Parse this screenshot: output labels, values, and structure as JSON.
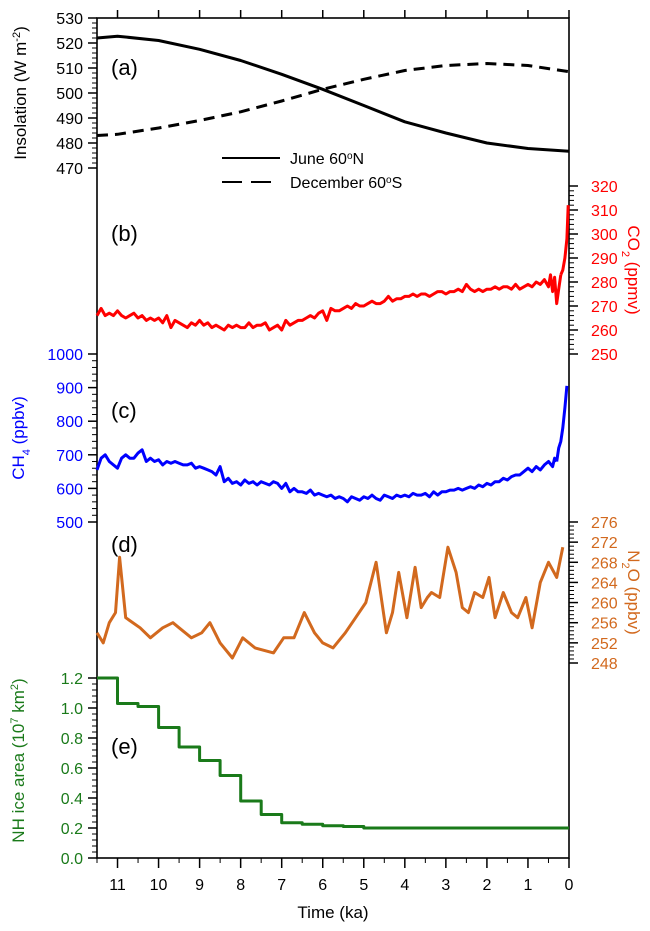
{
  "chart_data": [
    {
      "panel": "(a)",
      "type": "line",
      "ylabel_main": "Insolation (W m",
      "ylabel_sup": "-2",
      "ylabel_tail": ")",
      "ylim": [
        470,
        530
      ],
      "yticks": [
        470,
        480,
        490,
        500,
        510,
        520,
        530
      ],
      "color": "#000000",
      "legend": {
        "placement": "lower-center",
        "entries": [
          {
            "label_main": "June 60",
            "label_sup": "o",
            "label_tail": "N",
            "style": "solid"
          },
          {
            "label_main": "December 60",
            "label_sup": "o",
            "label_tail": "S",
            "style": "dashed"
          }
        ]
      },
      "series": [
        {
          "name": "June 60°N",
          "style": "solid",
          "x": [
            11.5,
            11,
            10,
            9,
            8,
            7,
            6,
            5,
            4,
            3,
            2,
            1,
            0
          ],
          "y": [
            522,
            522.7,
            521,
            517.5,
            513,
            507.5,
            501.5,
            495,
            488.5,
            484,
            480,
            477.8,
            476.7
          ]
        },
        {
          "name": "December 60°S",
          "style": "dashed",
          "x": [
            11.5,
            11,
            10,
            9,
            8,
            7,
            6,
            5,
            4,
            3,
            2,
            1,
            0
          ],
          "y": [
            483,
            483.5,
            486,
            489,
            492.5,
            496.8,
            501.5,
            505.5,
            509,
            511,
            511.8,
            511,
            508.5
          ]
        }
      ]
    },
    {
      "panel": "(b)",
      "type": "line",
      "ylabel_main": "CO",
      "ylabel_sub": "2",
      "ylabel_tail": " (ppmv)",
      "ylim": [
        250,
        320
      ],
      "yticks": [
        250,
        260,
        270,
        280,
        290,
        300,
        310,
        320
      ],
      "color": "#ff0000",
      "series": [
        {
          "name": "CO2",
          "x": [
            11.5,
            11.4,
            11.3,
            11.2,
            11.1,
            11.0,
            10.9,
            10.8,
            10.7,
            10.6,
            10.5,
            10.4,
            10.3,
            10.2,
            10.1,
            10.0,
            9.9,
            9.8,
            9.7,
            9.6,
            9.5,
            9.4,
            9.3,
            9.2,
            9.1,
            9.0,
            8.9,
            8.8,
            8.7,
            8.6,
            8.5,
            8.4,
            8.3,
            8.2,
            8.1,
            8.0,
            7.9,
            7.8,
            7.7,
            7.6,
            7.5,
            7.4,
            7.3,
            7.2,
            7.1,
            7.0,
            6.9,
            6.8,
            6.7,
            6.6,
            6.5,
            6.4,
            6.3,
            6.2,
            6.1,
            6.0,
            5.9,
            5.8,
            5.7,
            5.6,
            5.5,
            5.4,
            5.3,
            5.2,
            5.1,
            5.0,
            4.9,
            4.8,
            4.7,
            4.6,
            4.5,
            4.4,
            4.3,
            4.2,
            4.1,
            4.0,
            3.9,
            3.8,
            3.7,
            3.6,
            3.5,
            3.4,
            3.3,
            3.2,
            3.1,
            3.0,
            2.9,
            2.8,
            2.7,
            2.6,
            2.5,
            2.4,
            2.3,
            2.2,
            2.1,
            2.0,
            1.9,
            1.8,
            1.7,
            1.6,
            1.5,
            1.4,
            1.3,
            1.2,
            1.1,
            1.0,
            0.9,
            0.8,
            0.7,
            0.6,
            0.5,
            0.45,
            0.4,
            0.35,
            0.3,
            0.25,
            0.2
          ],
          "y": [
            266,
            269,
            266,
            267,
            266,
            268,
            266,
            265,
            266,
            267,
            265,
            266,
            264,
            265,
            264,
            265,
            263,
            266,
            261,
            264,
            263,
            262,
            261,
            263,
            262,
            264,
            262,
            263,
            261,
            262,
            261,
            260,
            262,
            261,
            262,
            261,
            261,
            263,
            261,
            262,
            262,
            263,
            260,
            261,
            262,
            260,
            264,
            262,
            263,
            264,
            264,
            265,
            266,
            265,
            267,
            268,
            264,
            269,
            268,
            268,
            269,
            270,
            269,
            271,
            270,
            270,
            271,
            272,
            271,
            271,
            272,
            274,
            272,
            273,
            273,
            274,
            274,
            275,
            274,
            275,
            275,
            274,
            275,
            276,
            276,
            275,
            276,
            276,
            277,
            276,
            279,
            277,
            276,
            277,
            276,
            277,
            277,
            278,
            277,
            278,
            278,
            277,
            279,
            277,
            278,
            279,
            278,
            280,
            279,
            281,
            278,
            283,
            276,
            282,
            271,
            277,
            283
          ]
        },
        {
          "name": "CO2-rise",
          "x": [
            0.2,
            0.15,
            0.1,
            0.05,
            0.02
          ],
          "y": [
            283,
            285,
            290,
            298,
            312
          ]
        }
      ]
    },
    {
      "panel": "(c)",
      "type": "line",
      "ylabel_main": "CH",
      "ylabel_sub": "4",
      "ylabel_tail": " (ppbv)",
      "ylim": [
        500,
        1000
      ],
      "yticks": [
        500,
        600,
        700,
        800,
        900,
        1000
      ],
      "color": "#0000ff",
      "series": [
        {
          "name": "CH4",
          "x": [
            11.5,
            11.4,
            11.3,
            11.2,
            11.1,
            11.0,
            10.9,
            10.8,
            10.7,
            10.6,
            10.5,
            10.4,
            10.3,
            10.2,
            10.1,
            10.0,
            9.9,
            9.8,
            9.7,
            9.6,
            9.5,
            9.4,
            9.3,
            9.2,
            9.1,
            9.0,
            8.9,
            8.8,
            8.7,
            8.6,
            8.5,
            8.4,
            8.3,
            8.2,
            8.1,
            8.0,
            7.9,
            7.8,
            7.7,
            7.6,
            7.5,
            7.4,
            7.3,
            7.2,
            7.1,
            7.0,
            6.9,
            6.8,
            6.7,
            6.6,
            6.5,
            6.4,
            6.3,
            6.2,
            6.1,
            6.0,
            5.9,
            5.8,
            5.7,
            5.6,
            5.5,
            5.4,
            5.3,
            5.2,
            5.1,
            5.0,
            4.9,
            4.8,
            4.7,
            4.6,
            4.5,
            4.4,
            4.3,
            4.2,
            4.1,
            4.0,
            3.9,
            3.8,
            3.7,
            3.6,
            3.5,
            3.4,
            3.3,
            3.2,
            3.1,
            3.0,
            2.9,
            2.8,
            2.7,
            2.6,
            2.5,
            2.4,
            2.3,
            2.2,
            2.1,
            2.0,
            1.9,
            1.8,
            1.7,
            1.6,
            1.5,
            1.4,
            1.3,
            1.2,
            1.1,
            1.0,
            0.9,
            0.8,
            0.7,
            0.6,
            0.5,
            0.4,
            0.35,
            0.3
          ],
          "y": [
            655,
            690,
            700,
            680,
            670,
            660,
            690,
            700,
            690,
            690,
            705,
            715,
            680,
            690,
            680,
            685,
            670,
            680,
            675,
            680,
            675,
            670,
            670,
            675,
            660,
            665,
            660,
            655,
            650,
            640,
            665,
            620,
            630,
            615,
            620,
            610,
            625,
            615,
            620,
            610,
            620,
            615,
            610,
            620,
            615,
            600,
            615,
            590,
            600,
            590,
            590,
            585,
            595,
            580,
            585,
            580,
            575,
            580,
            570,
            575,
            570,
            560,
            575,
            570,
            565,
            575,
            570,
            580,
            570,
            565,
            580,
            575,
            570,
            580,
            575,
            580,
            575,
            585,
            580,
            580,
            585,
            575,
            590,
            580,
            590,
            590,
            595,
            595,
            600,
            595,
            600,
            605,
            600,
            610,
            605,
            615,
            610,
            620,
            620,
            630,
            625,
            635,
            640,
            640,
            650,
            660,
            650,
            665,
            655,
            670,
            680,
            665,
            690,
            680
          ]
        },
        {
          "name": "CH4-rise",
          "x": [
            0.3,
            0.25,
            0.2,
            0.15,
            0.1,
            0.05
          ],
          "y": [
            680,
            720,
            740,
            780,
            840,
            905
          ]
        }
      ]
    },
    {
      "panel": "(d)",
      "type": "line",
      "ylabel_main": "N",
      "ylabel_sub": "2",
      "ylabel_tail": "O (ppbv)",
      "ylim": [
        248,
        276
      ],
      "yticks": [
        248,
        252,
        256,
        260,
        264,
        268,
        272,
        276
      ],
      "color": "#d2691e",
      "series": [
        {
          "name": "N2O",
          "x": [
            11.5,
            11.35,
            11.2,
            11.05,
            10.95,
            10.8,
            10.45,
            10.2,
            9.9,
            9.65,
            9.5,
            9.2,
            8.95,
            8.75,
            8.5,
            8.2,
            7.95,
            7.65,
            7.2,
            6.95,
            6.7,
            6.45,
            6.2,
            6.0,
            5.75,
            5.45,
            5.2,
            4.95,
            4.7,
            4.45,
            4.3,
            4.15,
            3.95,
            3.75,
            3.6,
            3.45,
            3.35,
            3.15,
            2.95,
            2.75,
            2.6,
            2.45,
            2.3,
            2.1,
            1.95,
            1.8,
            1.6,
            1.4,
            1.25,
            1.05,
            0.9,
            0.7,
            0.5,
            0.3,
            0.15
          ],
          "y": [
            254,
            252,
            256,
            258,
            269,
            257,
            255,
            253,
            255,
            256,
            255,
            253,
            254,
            256,
            252,
            249,
            253,
            251,
            250,
            253,
            253,
            258,
            254,
            252,
            251,
            254,
            257,
            260,
            268,
            254,
            258,
            266,
            257,
            267,
            259,
            261,
            262,
            261,
            271,
            266,
            259,
            258,
            262,
            261,
            265,
            257,
            262,
            258,
            257,
            261,
            255,
            264,
            268,
            265,
            271
          ]
        }
      ]
    },
    {
      "panel": "(e)",
      "type": "line",
      "ylabel_main": "NH ice area (10",
      "ylabel_sup": "7",
      "ylabel_tail": " km",
      "ylabel_sup2": "2",
      "ylabel_tail2": ")",
      "ylim": [
        0.0,
        1.3
      ],
      "yticks": [
        0.0,
        0.2,
        0.4,
        0.6,
        0.8,
        1.0,
        1.2
      ],
      "color": "#1a7a1a",
      "series": [
        {
          "name": "NH ice area",
          "style": "step",
          "x": [
            11.5,
            11.0,
            10.5,
            10.0,
            9.5,
            9.0,
            8.5,
            8.0,
            7.5,
            7.0,
            6.5,
            6.0,
            5.5,
            5.0,
            4.5,
            4.0,
            3.5,
            3.0,
            2.5,
            2.0,
            1.5,
            1.0,
            0.5,
            0.0
          ],
          "y": [
            1.2,
            1.03,
            1.01,
            0.87,
            0.74,
            0.65,
            0.55,
            0.38,
            0.29,
            0.235,
            0.225,
            0.215,
            0.21,
            0.2,
            0.2,
            0.2,
            0.2,
            0.2,
            0.2,
            0.2,
            0.2,
            0.2,
            0.2,
            0.2
          ]
        }
      ]
    }
  ],
  "xaxis": {
    "label": "Time (ka)",
    "reversed": true,
    "xlim": [
      11.5,
      0
    ],
    "ticks": [
      11,
      10,
      9,
      8,
      7,
      6,
      5,
      4,
      3,
      2,
      1,
      0
    ]
  }
}
